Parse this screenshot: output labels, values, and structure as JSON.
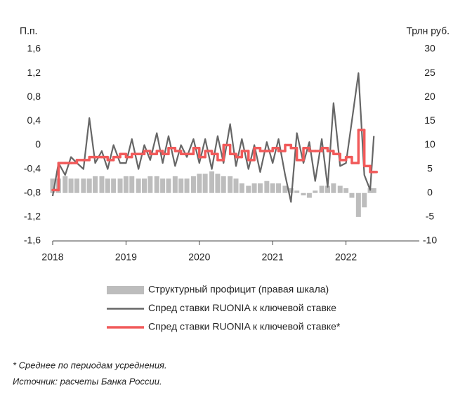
{
  "chart_data": {
    "type": "line",
    "y_label": "П.п.",
    "y2_label": "Трлн руб.",
    "xlim": [
      2018,
      2023
    ],
    "xticks": [
      2018,
      2019,
      2020,
      2021,
      2022
    ],
    "ylim": [
      -1.6,
      1.6
    ],
    "yticks": [
      {
        "value": -1.6,
        "label": "-1,6"
      },
      {
        "value": -1.2,
        "label": "-1,2"
      },
      {
        "value": -0.8,
        "label": "-0,8"
      },
      {
        "value": -0.4,
        "label": "-0,4"
      },
      0,
      {
        "value": 0.4,
        "label": "0,4"
      },
      {
        "value": 0.8,
        "label": "0,8"
      },
      {
        "value": 1.2,
        "label": "1,2"
      },
      {
        "value": 1.6,
        "label": "1,6"
      }
    ],
    "y2lim": [
      -10,
      30
    ],
    "y2ticks": [
      -10,
      -5,
      0,
      5,
      10,
      15,
      20,
      25,
      30
    ],
    "series": [
      {
        "name": "Структурный профицит (правая шкала)",
        "kind": "bar",
        "axis": "y2",
        "color": "#bdbdbd",
        "x": [
          2018.0,
          2018.08,
          2018.17,
          2018.25,
          2018.33,
          2018.42,
          2018.5,
          2018.58,
          2018.67,
          2018.75,
          2018.83,
          2018.92,
          2019.0,
          2019.08,
          2019.17,
          2019.25,
          2019.33,
          2019.42,
          2019.5,
          2019.58,
          2019.67,
          2019.75,
          2019.83,
          2019.92,
          2020.0,
          2020.08,
          2020.17,
          2020.25,
          2020.33,
          2020.42,
          2020.5,
          2020.58,
          2020.67,
          2020.75,
          2020.83,
          2020.92,
          2021.0,
          2021.08,
          2021.17,
          2021.25,
          2021.33,
          2021.42,
          2021.5,
          2021.58,
          2021.67,
          2021.75,
          2021.83,
          2021.92,
          2022.0,
          2022.08,
          2022.17,
          2022.25,
          2022.33,
          2022.38
        ],
        "values": [
          3,
          3,
          3.5,
          3,
          3,
          3,
          3,
          3.5,
          3.5,
          3,
          3,
          3,
          3.5,
          3.5,
          3,
          3,
          3.5,
          3.5,
          3,
          3,
          3.5,
          3,
          3,
          3.5,
          4,
          4,
          4.5,
          4,
          3.5,
          3.5,
          3,
          2,
          1.5,
          2,
          2,
          2.5,
          2,
          2,
          1.5,
          1,
          0.5,
          -0.5,
          -1,
          0.5,
          1.5,
          1.5,
          2,
          1.5,
          1,
          -1,
          -5,
          -3,
          1,
          1
        ]
      },
      {
        "name": "Спред ставки RUONIA к ключевой ставке",
        "kind": "line",
        "color": "#666666",
        "x": [
          2018.0,
          2018.08,
          2018.17,
          2018.25,
          2018.33,
          2018.42,
          2018.5,
          2018.58,
          2018.67,
          2018.75,
          2018.83,
          2018.92,
          2019.0,
          2019.08,
          2019.17,
          2019.25,
          2019.33,
          2019.42,
          2019.5,
          2019.58,
          2019.67,
          2019.75,
          2019.83,
          2019.92,
          2020.0,
          2020.08,
          2020.17,
          2020.25,
          2020.33,
          2020.42,
          2020.5,
          2020.58,
          2020.67,
          2020.75,
          2020.83,
          2020.92,
          2021.0,
          2021.08,
          2021.17,
          2021.25,
          2021.33,
          2021.42,
          2021.5,
          2021.58,
          2021.67,
          2021.75,
          2021.83,
          2021.92,
          2022.0,
          2022.08,
          2022.17,
          2022.25,
          2022.33,
          2022.38
        ],
        "values": [
          -0.85,
          -0.3,
          -0.5,
          -0.2,
          -0.3,
          -0.4,
          0.45,
          -0.3,
          -0.1,
          -0.4,
          0.0,
          -0.3,
          -0.3,
          0.1,
          -0.4,
          0.0,
          -0.25,
          0.2,
          -0.3,
          0.15,
          -0.35,
          0.0,
          -0.2,
          0.1,
          -0.3,
          0.1,
          -0.4,
          0.15,
          -0.3,
          0.35,
          -0.35,
          0.1,
          -0.4,
          0.0,
          -0.45,
          0.05,
          -0.3,
          0.1,
          -0.5,
          -0.95,
          0.2,
          -0.3,
          0.05,
          -0.6,
          0.1,
          -0.7,
          0.7,
          -0.35,
          -0.3,
          0.4,
          1.2,
          -0.5,
          -0.75,
          0.15
        ]
      },
      {
        "name": "Спред ставки RUONIA к ключевой ставке*",
        "kind": "step",
        "color": "#f15a5a",
        "x": [
          2018.0,
          2018.08,
          2018.17,
          2018.25,
          2018.33,
          2018.42,
          2018.5,
          2018.58,
          2018.67,
          2018.75,
          2018.83,
          2018.92,
          2019.0,
          2019.08,
          2019.17,
          2019.25,
          2019.33,
          2019.42,
          2019.5,
          2019.58,
          2019.67,
          2019.75,
          2019.83,
          2019.92,
          2020.0,
          2020.08,
          2020.17,
          2020.25,
          2020.33,
          2020.42,
          2020.5,
          2020.58,
          2020.67,
          2020.75,
          2020.83,
          2020.92,
          2021.0,
          2021.08,
          2021.17,
          2021.25,
          2021.33,
          2021.42,
          2021.5,
          2021.58,
          2021.67,
          2021.75,
          2021.83,
          2021.92,
          2022.0,
          2022.08,
          2022.17,
          2022.25,
          2022.33,
          2022.38
        ],
        "values": [
          -0.75,
          -0.3,
          -0.3,
          -0.3,
          -0.25,
          -0.25,
          -0.2,
          -0.2,
          -0.2,
          -0.25,
          -0.2,
          -0.15,
          -0.2,
          -0.15,
          -0.15,
          -0.1,
          -0.15,
          -0.1,
          -0.15,
          -0.05,
          -0.1,
          -0.15,
          -0.15,
          -0.05,
          -0.2,
          -0.1,
          -0.15,
          -0.25,
          0.0,
          -0.15,
          -0.2,
          -0.1,
          -0.25,
          -0.05,
          -0.1,
          -0.1,
          -0.05,
          -0.1,
          0.0,
          -0.05,
          -0.25,
          -0.05,
          -0.1,
          -0.1,
          -0.05,
          -0.1,
          -0.15,
          -0.25,
          -0.2,
          -0.3,
          0.25,
          -0.35,
          -0.45,
          -0.45
        ]
      }
    ],
    "notes": [
      "* Среднее по периодам усреднения.",
      "Источник: расчеты Банка России."
    ]
  }
}
